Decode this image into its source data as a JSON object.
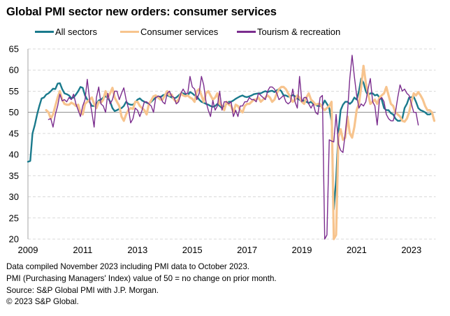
{
  "title": "Global PMI sector new orders: consumer services",
  "footnotes": [
    "Data compiled November 2023 including PMI data to October 2023.",
    "PMI (Purchasing Managers' Index) value of 50 = no change on prior month.",
    "Source: S&P Global PMI with J.P. Morgan.",
    "© 2023 S&P Global."
  ],
  "chart_data": {
    "type": "line",
    "title": "Global PMI sector new orders: consumer services",
    "xlabel": "",
    "ylabel": "",
    "x_start": "2009-01",
    "x_end": "2023-10",
    "frequency": "monthly",
    "x_range": [
      2009,
      2023.83
    ],
    "xticks": [
      "2009",
      "2011",
      "2013",
      "2015",
      "2017",
      "2019",
      "2021",
      "2023"
    ],
    "ylim": [
      20,
      65
    ],
    "yticks": [
      20,
      25,
      30,
      35,
      40,
      45,
      50,
      55,
      60,
      65
    ],
    "reference_line": 50,
    "grid": "horizontal dashed",
    "legend_position": "top",
    "series": [
      {
        "name": "All sectors",
        "color": "#1a7a8c",
        "start": "2009-01",
        "values": [
          38.3,
          38.5,
          45.0,
          47.0,
          49.5,
          51.5,
          53.3,
          53.5,
          54.2,
          54.5,
          55.0,
          55.6,
          55.5,
          56.8,
          56.9,
          55.5,
          54.5,
          54.3,
          54.0,
          53.3,
          53.5,
          54.2,
          55.0,
          56.0,
          55.8,
          54.0,
          53.0,
          52.5,
          51.5,
          51.5,
          52.0,
          52.8,
          53.0,
          53.5,
          53.8,
          53.5,
          52.5,
          51.0,
          50.3,
          50.5,
          50.8,
          51.0,
          51.5,
          52.5,
          52.0,
          51.8,
          51.8,
          52.3,
          53.0,
          53.3,
          52.8,
          52.5,
          52.3,
          52.0,
          52.5,
          53.0,
          53.5,
          53.8,
          53.5,
          54.0,
          54.2,
          54.0,
          53.8,
          53.5,
          53.3,
          53.5,
          54.0,
          54.5,
          54.5,
          54.2,
          54.0,
          54.8,
          54.5,
          54.0,
          53.8,
          53.0,
          52.5,
          52.3,
          52.0,
          51.8,
          51.5,
          51.3,
          51.5,
          52.0,
          51.5,
          51.0,
          51.3,
          52.0,
          52.5,
          52.5,
          52.8,
          53.2,
          53.5,
          53.8,
          54.0,
          53.7,
          53.6,
          53.8,
          54.0,
          54.3,
          54.4,
          54.5,
          54.5,
          54.8,
          55.0,
          54.8,
          55.0,
          55.1,
          54.8,
          55.2,
          55.5,
          55.0,
          54.0,
          54.0,
          53.7,
          53.8,
          54.1,
          53.8,
          53.2,
          53.0,
          52.5,
          52.8,
          52.5,
          52.2,
          52.5,
          52.0,
          51.8,
          51.5,
          51.5,
          51.6,
          52.8,
          52.0,
          51.0,
          48.0,
          27.0,
          34.0,
          45.5,
          50.5,
          51.8,
          52.5,
          52.5,
          52.0,
          52.5,
          53.5,
          53.0,
          55.0,
          58.0,
          57.0,
          55.0,
          54.0,
          54.5,
          54.5,
          54.0,
          54.2,
          53.5,
          53.0,
          51.0,
          50.5,
          50.5,
          49.8,
          49.5,
          48.5,
          48.0,
          48.0,
          48.5,
          51.0,
          52.0,
          53.5,
          53.6,
          53.7,
          52.5,
          51.0,
          50.5,
          50.3,
          50.0,
          49.5,
          49.5,
          49.8
        ]
      },
      {
        "name": "Consumer services",
        "color": "#f7c48e",
        "start": "2009-09",
        "values": [
          50.5,
          50.0,
          48.5,
          49.5,
          51.5,
          53.5,
          55.0,
          53.0,
          52.0,
          51.8,
          51.8,
          52.3,
          52.0,
          51.5,
          51.8,
          50.0,
          49.5,
          52.0,
          52.5,
          53.0,
          53.5,
          52.0,
          51.0,
          52.5,
          52.3,
          53.0,
          55.0,
          53.5,
          54.5,
          55.8,
          53.5,
          52.5,
          51.5,
          49.0,
          48.0,
          49.5,
          50.5,
          51.0,
          50.8,
          52.5,
          52.5,
          51.5,
          51.0,
          50.5,
          49.5,
          52.0,
          52.8,
          53.8,
          54.0,
          53.5,
          53.0,
          53.0,
          54.0,
          55.0,
          54.0,
          54.2,
          53.0,
          52.5,
          53.0,
          54.5,
          54.0,
          53.8,
          54.0,
          53.5,
          53.2,
          52.5,
          55.0,
          55.5,
          54.0,
          52.5,
          54.5,
          55.0,
          54.0,
          53.0,
          53.5,
          54.5,
          52.0,
          51.5,
          50.5,
          52.5,
          51.8,
          51.5,
          50.0,
          51.8,
          51.5,
          50.5,
          50.0,
          51.5,
          52.0,
          52.0,
          52.5,
          53.0,
          53.0,
          53.5,
          52.5,
          53.0,
          53.5,
          54.0,
          53.5,
          52.5,
          53.0,
          54.5,
          55.5,
          56.0,
          56.0,
          55.5,
          54.5,
          53.5,
          52.5,
          53.0,
          54.0,
          53.5,
          52.5,
          52.0,
          53.5,
          54.5,
          53.0,
          52.5,
          51.8,
          52.0,
          52.0,
          51.0,
          50.5,
          51.0,
          51.5,
          52.5,
          20.0,
          21.0,
          44.0,
          46.0,
          43.5,
          44.0,
          49.0,
          45.0,
          44.0,
          46.5,
          50.5,
          52.0,
          56.0,
          61.0,
          57.0,
          54.5,
          52.0,
          52.5,
          53.0,
          52.0,
          53.5,
          54.0,
          54.5,
          56.0,
          54.0,
          52.0,
          51.5,
          50.0,
          49.5,
          49.0,
          48.0,
          47.8,
          48.5,
          50.0,
          52.5,
          54.5,
          54.0,
          54.8,
          54.0,
          53.0,
          51.5,
          50.5,
          50.5,
          50.0,
          48.0
        ]
      },
      {
        "name": "Tourism & recreation",
        "color": "#7b2d8e",
        "start": "2009-10",
        "values": [
          48.3,
          48.5,
          46.5,
          49.5,
          51.5,
          54.3,
          52.7,
          53.0,
          52.5,
          53.5,
          53.0,
          54.3,
          52.0,
          50.5,
          49.0,
          51.5,
          53.0,
          57.8,
          53.0,
          50.0,
          46.5,
          53.5,
          56.0,
          52.0,
          51.5,
          50.0,
          54.5,
          52.0,
          53.0,
          55.0,
          55.0,
          53.0,
          54.5,
          55.8,
          53.0,
          51.0,
          47.5,
          48.5,
          51.0,
          50.5,
          49.0,
          50.5,
          52.5,
          52.5,
          52.0,
          51.5,
          50.0,
          53.5,
          53.8,
          53.8,
          52.5,
          52.0,
          54.5,
          55.0,
          53.8,
          53.5,
          52.0,
          52.5,
          54.5,
          55.5,
          54.5,
          54.5,
          58.5,
          56.0,
          55.5,
          53.0,
          54.5,
          58.5,
          56.5,
          52.5,
          50.5,
          49.0,
          52.8,
          50.5,
          51.5,
          55.0,
          50.5,
          52.5,
          52.5,
          52.0,
          52.5,
          49.0,
          50.5,
          49.0,
          51.5,
          51.5,
          52.5,
          52.5,
          53.5,
          53.0,
          53.0,
          52.5,
          54.5,
          54.0,
          53.5,
          53.0,
          55.0,
          56.0,
          56.0,
          55.5,
          54.5,
          53.0,
          53.5,
          54.0,
          52.5,
          52.0,
          52.5,
          55.5,
          52.5,
          51.0,
          58.5,
          52.5,
          53.5,
          53.5,
          52.0,
          51.0,
          52.0,
          50.0,
          49.5,
          53.5,
          54.0,
          18.0,
          21.0,
          43.5,
          43.2,
          43.0,
          49.5,
          42.5,
          41.0,
          40.5,
          45.0,
          50.0,
          58.0,
          63.5,
          58.5,
          54.0,
          51.0,
          52.0,
          51.5,
          52.5,
          55.5,
          58.0,
          52.5,
          51.5,
          47.0,
          53.0,
          53.5,
          52.5,
          49.5,
          48.5,
          48.0,
          48.0,
          50.0,
          53.5,
          56.5,
          55.0,
          55.5,
          54.5,
          54.0,
          52.0,
          50.0,
          50.0,
          47.0
        ]
      }
    ]
  }
}
